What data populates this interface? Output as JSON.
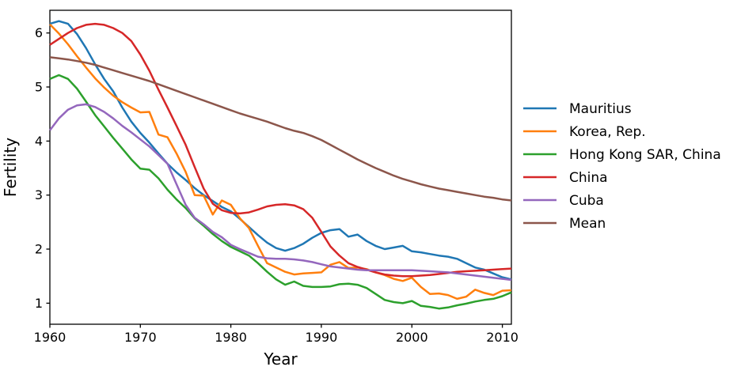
{
  "chart_data": {
    "type": "line",
    "title": "",
    "xlabel": "Year",
    "ylabel": "Fertility",
    "xlim": [
      1960,
      2011
    ],
    "ylim": [
      0.61,
      6.42
    ],
    "xticks": [
      1960,
      1970,
      1980,
      1990,
      2000,
      2010
    ],
    "yticks": [
      1,
      2,
      3,
      4,
      5,
      6
    ],
    "grid": false,
    "legend_position": "outside-center-right",
    "x": [
      1960,
      1961,
      1962,
      1963,
      1964,
      1965,
      1966,
      1967,
      1968,
      1969,
      1970,
      1971,
      1972,
      1973,
      1974,
      1975,
      1976,
      1977,
      1978,
      1979,
      1980,
      1981,
      1982,
      1983,
      1984,
      1985,
      1986,
      1987,
      1988,
      1989,
      1990,
      1991,
      1992,
      1993,
      1994,
      1995,
      1996,
      1997,
      1998,
      1999,
      2000,
      2001,
      2002,
      2003,
      2004,
      2005,
      2006,
      2007,
      2008,
      2009,
      2010,
      2011
    ],
    "series": [
      {
        "name": "Mauritius",
        "color": "#1f77b4",
        "values": [
          6.17,
          6.22,
          6.17,
          5.98,
          5.72,
          5.42,
          5.15,
          4.92,
          4.62,
          4.36,
          4.15,
          3.97,
          3.77,
          3.58,
          3.42,
          3.28,
          3.13,
          3.0,
          2.89,
          2.78,
          2.7,
          2.56,
          2.41,
          2.26,
          2.12,
          2.02,
          1.97,
          2.02,
          2.1,
          2.21,
          2.3,
          2.35,
          2.37,
          2.23,
          2.27,
          2.15,
          2.06,
          2.0,
          2.03,
          2.06,
          1.96,
          1.94,
          1.91,
          1.88,
          1.86,
          1.82,
          1.74,
          1.66,
          1.62,
          1.55,
          1.48,
          1.44
        ]
      },
      {
        "name": "Korea, Rep.",
        "color": "#ff7f0e",
        "values": [
          6.16,
          5.99,
          5.79,
          5.57,
          5.36,
          5.16,
          4.99,
          4.84,
          4.72,
          4.62,
          4.53,
          4.54,
          4.12,
          4.07,
          3.77,
          3.43,
          3.0,
          2.99,
          2.64,
          2.9,
          2.82,
          2.57,
          2.39,
          2.06,
          1.74,
          1.66,
          1.58,
          1.53,
          1.55,
          1.56,
          1.57,
          1.71,
          1.76,
          1.65,
          1.66,
          1.63,
          1.57,
          1.52,
          1.45,
          1.41,
          1.47,
          1.3,
          1.17,
          1.18,
          1.15,
          1.08,
          1.12,
          1.25,
          1.19,
          1.15,
          1.23,
          1.24
        ]
      },
      {
        "name": "Hong Kong SAR, China",
        "color": "#2ca02c",
        "values": [
          5.15,
          5.22,
          5.15,
          4.97,
          4.73,
          4.48,
          4.27,
          4.06,
          3.86,
          3.66,
          3.49,
          3.47,
          3.31,
          3.1,
          2.92,
          2.76,
          2.57,
          2.43,
          2.28,
          2.15,
          2.04,
          1.96,
          1.88,
          1.74,
          1.58,
          1.44,
          1.34,
          1.4,
          1.32,
          1.3,
          1.3,
          1.31,
          1.35,
          1.36,
          1.34,
          1.28,
          1.17,
          1.06,
          1.02,
          1.0,
          1.04,
          0.95,
          0.93,
          0.9,
          0.92,
          0.96,
          0.99,
          1.03,
          1.06,
          1.08,
          1.13,
          1.2
        ]
      },
      {
        "name": "China",
        "color": "#d62728",
        "values": [
          5.78,
          5.89,
          6.0,
          6.09,
          6.15,
          6.17,
          6.15,
          6.09,
          6.0,
          5.85,
          5.6,
          5.3,
          4.95,
          4.62,
          4.28,
          3.93,
          3.52,
          3.12,
          2.84,
          2.72,
          2.67,
          2.66,
          2.68,
          2.73,
          2.79,
          2.82,
          2.83,
          2.81,
          2.74,
          2.58,
          2.32,
          2.05,
          1.88,
          1.74,
          1.67,
          1.62,
          1.57,
          1.53,
          1.51,
          1.5,
          1.5,
          1.51,
          1.52,
          1.54,
          1.56,
          1.58,
          1.59,
          1.6,
          1.61,
          1.62,
          1.63,
          1.64
        ]
      },
      {
        "name": "Cuba",
        "color": "#9467bd",
        "values": [
          4.2,
          4.42,
          4.58,
          4.66,
          4.68,
          4.63,
          4.54,
          4.42,
          4.28,
          4.16,
          4.03,
          3.9,
          3.74,
          3.58,
          3.2,
          2.82,
          2.58,
          2.46,
          2.32,
          2.22,
          2.08,
          2.0,
          1.93,
          1.86,
          1.83,
          1.82,
          1.82,
          1.81,
          1.79,
          1.76,
          1.72,
          1.68,
          1.66,
          1.64,
          1.62,
          1.61,
          1.61,
          1.61,
          1.61,
          1.61,
          1.61,
          1.6,
          1.59,
          1.58,
          1.57,
          1.55,
          1.53,
          1.51,
          1.49,
          1.47,
          1.45,
          1.43
        ]
      },
      {
        "name": "Mean",
        "color": "#8c564b",
        "values": [
          5.55,
          5.53,
          5.51,
          5.48,
          5.45,
          5.41,
          5.36,
          5.31,
          5.26,
          5.21,
          5.16,
          5.11,
          5.05,
          4.99,
          4.93,
          4.87,
          4.81,
          4.75,
          4.69,
          4.63,
          4.57,
          4.51,
          4.46,
          4.41,
          4.36,
          4.3,
          4.24,
          4.19,
          4.15,
          4.09,
          4.02,
          3.93,
          3.84,
          3.75,
          3.66,
          3.58,
          3.5,
          3.43,
          3.36,
          3.3,
          3.25,
          3.2,
          3.16,
          3.12,
          3.09,
          3.06,
          3.03,
          3.0,
          2.97,
          2.95,
          2.92,
          2.9
        ]
      }
    ]
  }
}
